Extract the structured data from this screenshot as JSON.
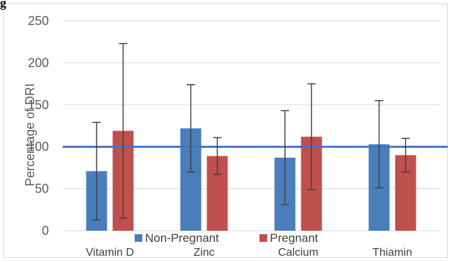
{
  "figure_label": "g",
  "chart_data": {
    "type": "bar",
    "categories": [
      "Vitamin D",
      "Zinc",
      "Calcium",
      "Thiamin"
    ],
    "series": [
      {
        "name": "Non-Pregnant",
        "color": "#4a7ebb",
        "values": [
          71,
          122,
          87,
          103
        ],
        "err_low": [
          13,
          70,
          31,
          51
        ],
        "err_high": [
          129,
          174,
          143,
          155
        ]
      },
      {
        "name": "Pregnant",
        "color": "#c0504d",
        "values": [
          119,
          89,
          112,
          90
        ],
        "err_low": [
          15,
          67,
          49,
          70
        ],
        "err_high": [
          223,
          111,
          175,
          110
        ]
      }
    ],
    "ylabel": "Percentage of DRI",
    "ylim": [
      0,
      250
    ],
    "yticks": [
      "0",
      "50",
      "100",
      "150",
      "200",
      "250"
    ],
    "reference_line": {
      "value": 100,
      "color": "#4472c4"
    },
    "grid": true,
    "legend_position": "bottom"
  }
}
